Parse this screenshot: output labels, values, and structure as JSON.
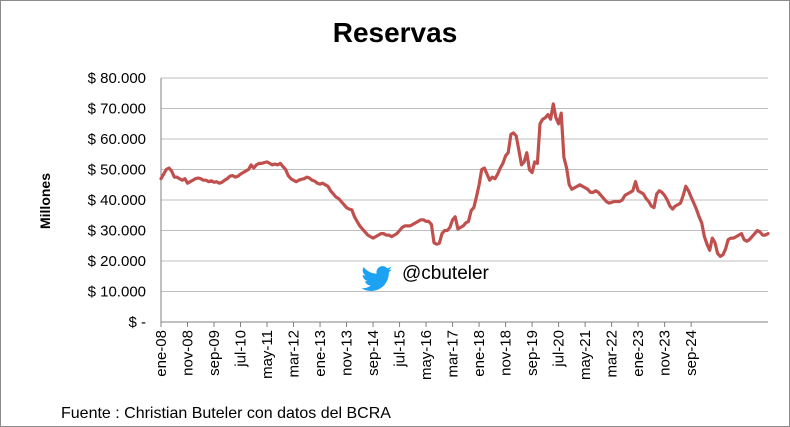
{
  "chart_data": {
    "type": "line",
    "title": "Reservas",
    "ylabel": "Millones",
    "xlabel": "",
    "ylim": [
      0,
      80000
    ],
    "y_ticks": [
      {
        "value": 0,
        "label": "$ -"
      },
      {
        "value": 10000,
        "label": "$ 10.000"
      },
      {
        "value": 20000,
        "label": "$ 20.000"
      },
      {
        "value": 30000,
        "label": "$ 30.000"
      },
      {
        "value": 40000,
        "label": "$ 40.000"
      },
      {
        "value": 50000,
        "label": "$ 50.000"
      },
      {
        "value": 60000,
        "label": "$ 60.000"
      },
      {
        "value": 70000,
        "label": "$ 70.000"
      },
      {
        "value": 80000,
        "label": "$ 80.000"
      }
    ],
    "x_ticks": [
      "ene-08",
      "nov-08",
      "sep-09",
      "jul-10",
      "may-11",
      "mar-12",
      "ene-13",
      "nov-13",
      "sep-14",
      "jul-15",
      "may-16",
      "mar-17",
      "ene-18",
      "nov-18",
      "sep-19",
      "jul-20",
      "may-21",
      "mar-22",
      "ene-23",
      "nov-23",
      "sep-24"
    ],
    "grid": "horizontal",
    "series": [
      {
        "color": "#c0504d",
        "x_start": "2008-01",
        "step": "month",
        "values": [
          47000,
          48500,
          50000,
          50500,
          49500,
          47500,
          47500,
          47000,
          46500,
          47000,
          45500,
          46000,
          46500,
          47000,
          47200,
          47000,
          46500,
          46500,
          46000,
          46300,
          45800,
          46000,
          45500,
          45800,
          46500,
          47000,
          47800,
          48000,
          47500,
          47800,
          48500,
          49000,
          49500,
          50000,
          51500,
          50500,
          51500,
          52000,
          52000,
          52300,
          52500,
          52000,
          51500,
          51800,
          51500,
          52000,
          51000,
          50000,
          48000,
          47000,
          46500,
          46000,
          46500,
          46800,
          47000,
          47500,
          47200,
          46500,
          46200,
          45500,
          45200,
          45500,
          45000,
          44500,
          43000,
          42000,
          41000,
          40500,
          39500,
          38500,
          37500,
          37000,
          36800,
          34500,
          33000,
          31500,
          30500,
          29500,
          28500,
          28000,
          27500,
          28000,
          28500,
          29000,
          29000,
          28500,
          28500,
          28000,
          28500,
          29000,
          30000,
          31000,
          31500,
          31500,
          31500,
          32000,
          32500,
          33000,
          33500,
          33500,
          33000,
          33000,
          32000,
          26000,
          25500,
          25800,
          29000,
          30000,
          30000,
          31000,
          33500,
          34500,
          30500,
          31000,
          31500,
          32500,
          33000,
          36500,
          37500,
          41000,
          45000,
          50000,
          50500,
          48500,
          46500,
          47500,
          47000,
          48500,
          50500,
          52000,
          54500,
          55500,
          61500,
          62000,
          61000,
          56500,
          51500,
          52500,
          55500,
          50000,
          49000,
          52500,
          52000,
          65000,
          66500,
          67000,
          68000,
          66500,
          71500,
          67000,
          65000,
          68500,
          54000,
          50500,
          45000,
          43500,
          44000,
          44500,
          45000,
          44500,
          44000,
          43500,
          42500,
          42500,
          43000,
          42500,
          41500,
          40500,
          39500,
          39000,
          39200,
          39500,
          39500,
          39500,
          40000,
          41500,
          42000,
          42500,
          43000,
          46000,
          43000,
          42500,
          42000,
          40500,
          39500,
          38000,
          37500,
          42000,
          43000,
          42500,
          41500,
          40000,
          38000,
          37000,
          38000,
          38500,
          39000,
          41500,
          44500,
          43000,
          41000,
          39000,
          37000,
          34500,
          32500,
          28000,
          25500,
          23500,
          27500,
          26000,
          22500,
          21500,
          22000,
          24000,
          27000,
          27500,
          27500,
          28000,
          28500,
          29000,
          27000,
          26500,
          27000,
          28000,
          29000,
          30000,
          29500,
          28500,
          28500,
          29000
        ]
      }
    ],
    "annotation": "@cbuteler",
    "source": "Fuente : Christian Buteler con datos del BCRA"
  }
}
